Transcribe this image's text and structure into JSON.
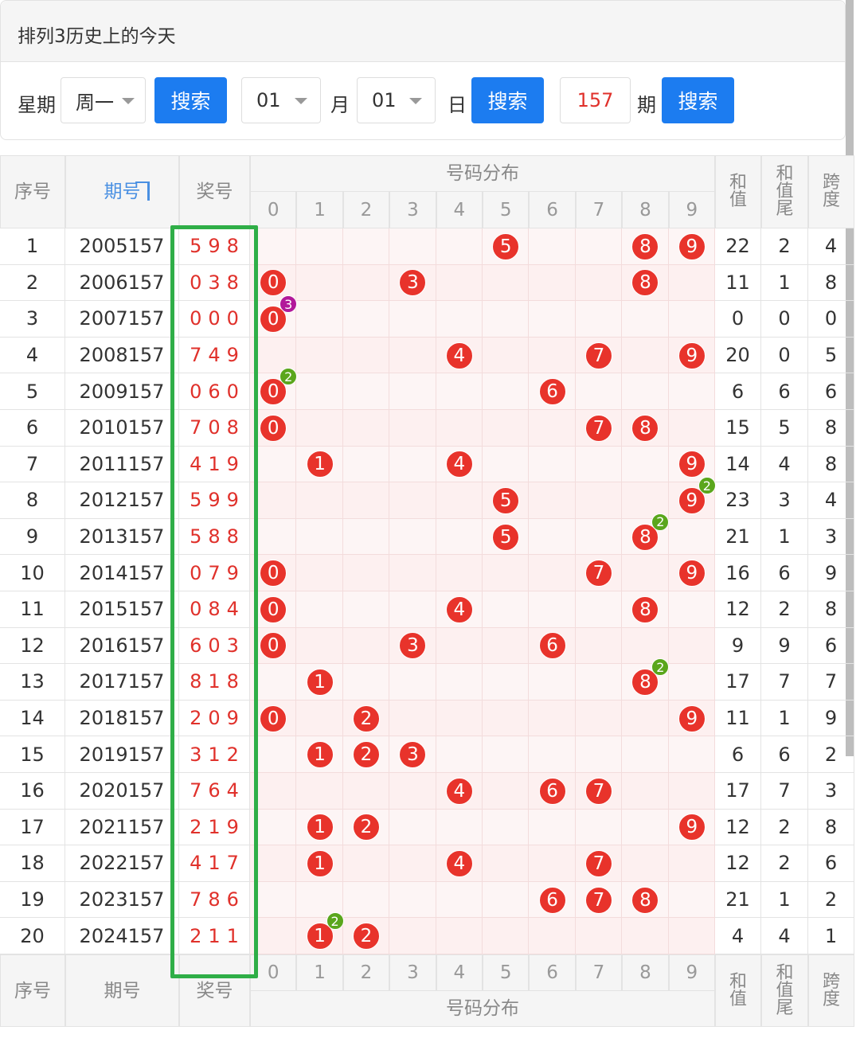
{
  "header": {
    "title": "排列3历史上的今天"
  },
  "search": {
    "weekday_label": "星期",
    "weekday": "周一",
    "search_1": "搜索",
    "month": "01",
    "month_label": "月",
    "day": "01",
    "day_label": "日",
    "search_2": "搜索",
    "period": "157",
    "period_label": "期",
    "search_3": "搜索"
  },
  "table": {
    "columns": {
      "no": "序号",
      "issue": "期号",
      "draw": "奖号",
      "distribution": "号码分布",
      "sum": "和值",
      "sum_tail": "和值尾",
      "span": "跨度"
    },
    "digits": [
      "0",
      "1",
      "2",
      "3",
      "4",
      "5",
      "6",
      "7",
      "8",
      "9"
    ],
    "rows": [
      {
        "no": 1,
        "issue": "2005157",
        "draw": "598",
        "balls": [
          {
            "n": 5
          },
          {
            "n": 8
          },
          {
            "n": 9
          }
        ],
        "sum": 22,
        "sum_tail": 2,
        "span": 4
      },
      {
        "no": 2,
        "issue": "2006157",
        "draw": "038",
        "balls": [
          {
            "n": 0
          },
          {
            "n": 3
          },
          {
            "n": 8
          }
        ],
        "sum": 11,
        "sum_tail": 1,
        "span": 8
      },
      {
        "no": 3,
        "issue": "2007157",
        "draw": "000",
        "balls": [
          {
            "n": 0,
            "repeat": 3
          }
        ],
        "sum": 0,
        "sum_tail": 0,
        "span": 0
      },
      {
        "no": 4,
        "issue": "2008157",
        "draw": "749",
        "balls": [
          {
            "n": 4
          },
          {
            "n": 7
          },
          {
            "n": 9
          }
        ],
        "sum": 20,
        "sum_tail": 0,
        "span": 5
      },
      {
        "no": 5,
        "issue": "2009157",
        "draw": "060",
        "balls": [
          {
            "n": 0,
            "repeat": 2
          },
          {
            "n": 6
          }
        ],
        "sum": 6,
        "sum_tail": 6,
        "span": 6
      },
      {
        "no": 6,
        "issue": "2010157",
        "draw": "708",
        "balls": [
          {
            "n": 0
          },
          {
            "n": 7
          },
          {
            "n": 8
          }
        ],
        "sum": 15,
        "sum_tail": 5,
        "span": 8
      },
      {
        "no": 7,
        "issue": "2011157",
        "draw": "419",
        "balls": [
          {
            "n": 1
          },
          {
            "n": 4
          },
          {
            "n": 9
          }
        ],
        "sum": 14,
        "sum_tail": 4,
        "span": 8
      },
      {
        "no": 8,
        "issue": "2012157",
        "draw": "599",
        "balls": [
          {
            "n": 5
          },
          {
            "n": 9,
            "repeat": 2
          }
        ],
        "sum": 23,
        "sum_tail": 3,
        "span": 4
      },
      {
        "no": 9,
        "issue": "2013157",
        "draw": "588",
        "balls": [
          {
            "n": 5
          },
          {
            "n": 8,
            "repeat": 2
          }
        ],
        "sum": 21,
        "sum_tail": 1,
        "span": 3
      },
      {
        "no": 10,
        "issue": "2014157",
        "draw": "079",
        "balls": [
          {
            "n": 0
          },
          {
            "n": 7
          },
          {
            "n": 9
          }
        ],
        "sum": 16,
        "sum_tail": 6,
        "span": 9
      },
      {
        "no": 11,
        "issue": "2015157",
        "draw": "084",
        "balls": [
          {
            "n": 0
          },
          {
            "n": 4
          },
          {
            "n": 8
          }
        ],
        "sum": 12,
        "sum_tail": 2,
        "span": 8
      },
      {
        "no": 12,
        "issue": "2016157",
        "draw": "603",
        "balls": [
          {
            "n": 0
          },
          {
            "n": 3
          },
          {
            "n": 6
          }
        ],
        "sum": 9,
        "sum_tail": 9,
        "span": 6
      },
      {
        "no": 13,
        "issue": "2017157",
        "draw": "818",
        "balls": [
          {
            "n": 1
          },
          {
            "n": 8,
            "repeat": 2
          }
        ],
        "sum": 17,
        "sum_tail": 7,
        "span": 7
      },
      {
        "no": 14,
        "issue": "2018157",
        "draw": "209",
        "balls": [
          {
            "n": 0
          },
          {
            "n": 2
          },
          {
            "n": 9
          }
        ],
        "sum": 11,
        "sum_tail": 1,
        "span": 9
      },
      {
        "no": 15,
        "issue": "2019157",
        "draw": "312",
        "balls": [
          {
            "n": 1
          },
          {
            "n": 2
          },
          {
            "n": 3
          }
        ],
        "sum": 6,
        "sum_tail": 6,
        "span": 2
      },
      {
        "no": 16,
        "issue": "2020157",
        "draw": "764",
        "balls": [
          {
            "n": 4
          },
          {
            "n": 6
          },
          {
            "n": 7
          }
        ],
        "sum": 17,
        "sum_tail": 7,
        "span": 3
      },
      {
        "no": 17,
        "issue": "2021157",
        "draw": "219",
        "balls": [
          {
            "n": 1
          },
          {
            "n": 2
          },
          {
            "n": 9
          }
        ],
        "sum": 12,
        "sum_tail": 2,
        "span": 8
      },
      {
        "no": 18,
        "issue": "2022157",
        "draw": "417",
        "balls": [
          {
            "n": 1
          },
          {
            "n": 4
          },
          {
            "n": 7
          }
        ],
        "sum": 12,
        "sum_tail": 2,
        "span": 6
      },
      {
        "no": 19,
        "issue": "2023157",
        "draw": "786",
        "balls": [
          {
            "n": 6
          },
          {
            "n": 7
          },
          {
            "n": 8
          }
        ],
        "sum": 21,
        "sum_tail": 1,
        "span": 2
      },
      {
        "no": 20,
        "issue": "2024157",
        "draw": "211",
        "balls": [
          {
            "n": 1,
            "repeat": 2
          },
          {
            "n": 2
          }
        ],
        "sum": 4,
        "sum_tail": 4,
        "span": 1
      }
    ]
  }
}
